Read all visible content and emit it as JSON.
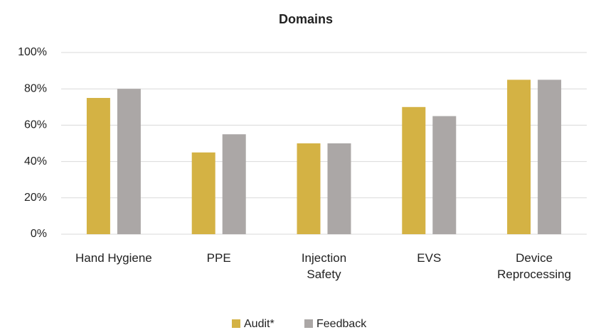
{
  "chart_data": {
    "type": "bar",
    "title": "Domains",
    "categories": [
      "Hand Hygiene",
      "PPE",
      "Injection\nSafety",
      "EVS",
      "Device\nReprocessing"
    ],
    "series": [
      {
        "name": "Audit*",
        "color": "#d4b244",
        "values": [
          75,
          45,
          50,
          70,
          85
        ]
      },
      {
        "name": "Feedback",
        "color": "#aba7a6",
        "values": [
          80,
          55,
          50,
          65,
          85
        ]
      }
    ],
    "ylim": [
      0,
      100
    ],
    "yticks": [
      {
        "value": 0,
        "label": "0%"
      },
      {
        "value": 20,
        "label": "20%"
      },
      {
        "value": 40,
        "label": "40%"
      },
      {
        "value": 60,
        "label": "60%"
      },
      {
        "value": 80,
        "label": "80%"
      },
      {
        "value": 100,
        "label": "100%"
      }
    ],
    "grid": true,
    "legend": "bottom"
  }
}
